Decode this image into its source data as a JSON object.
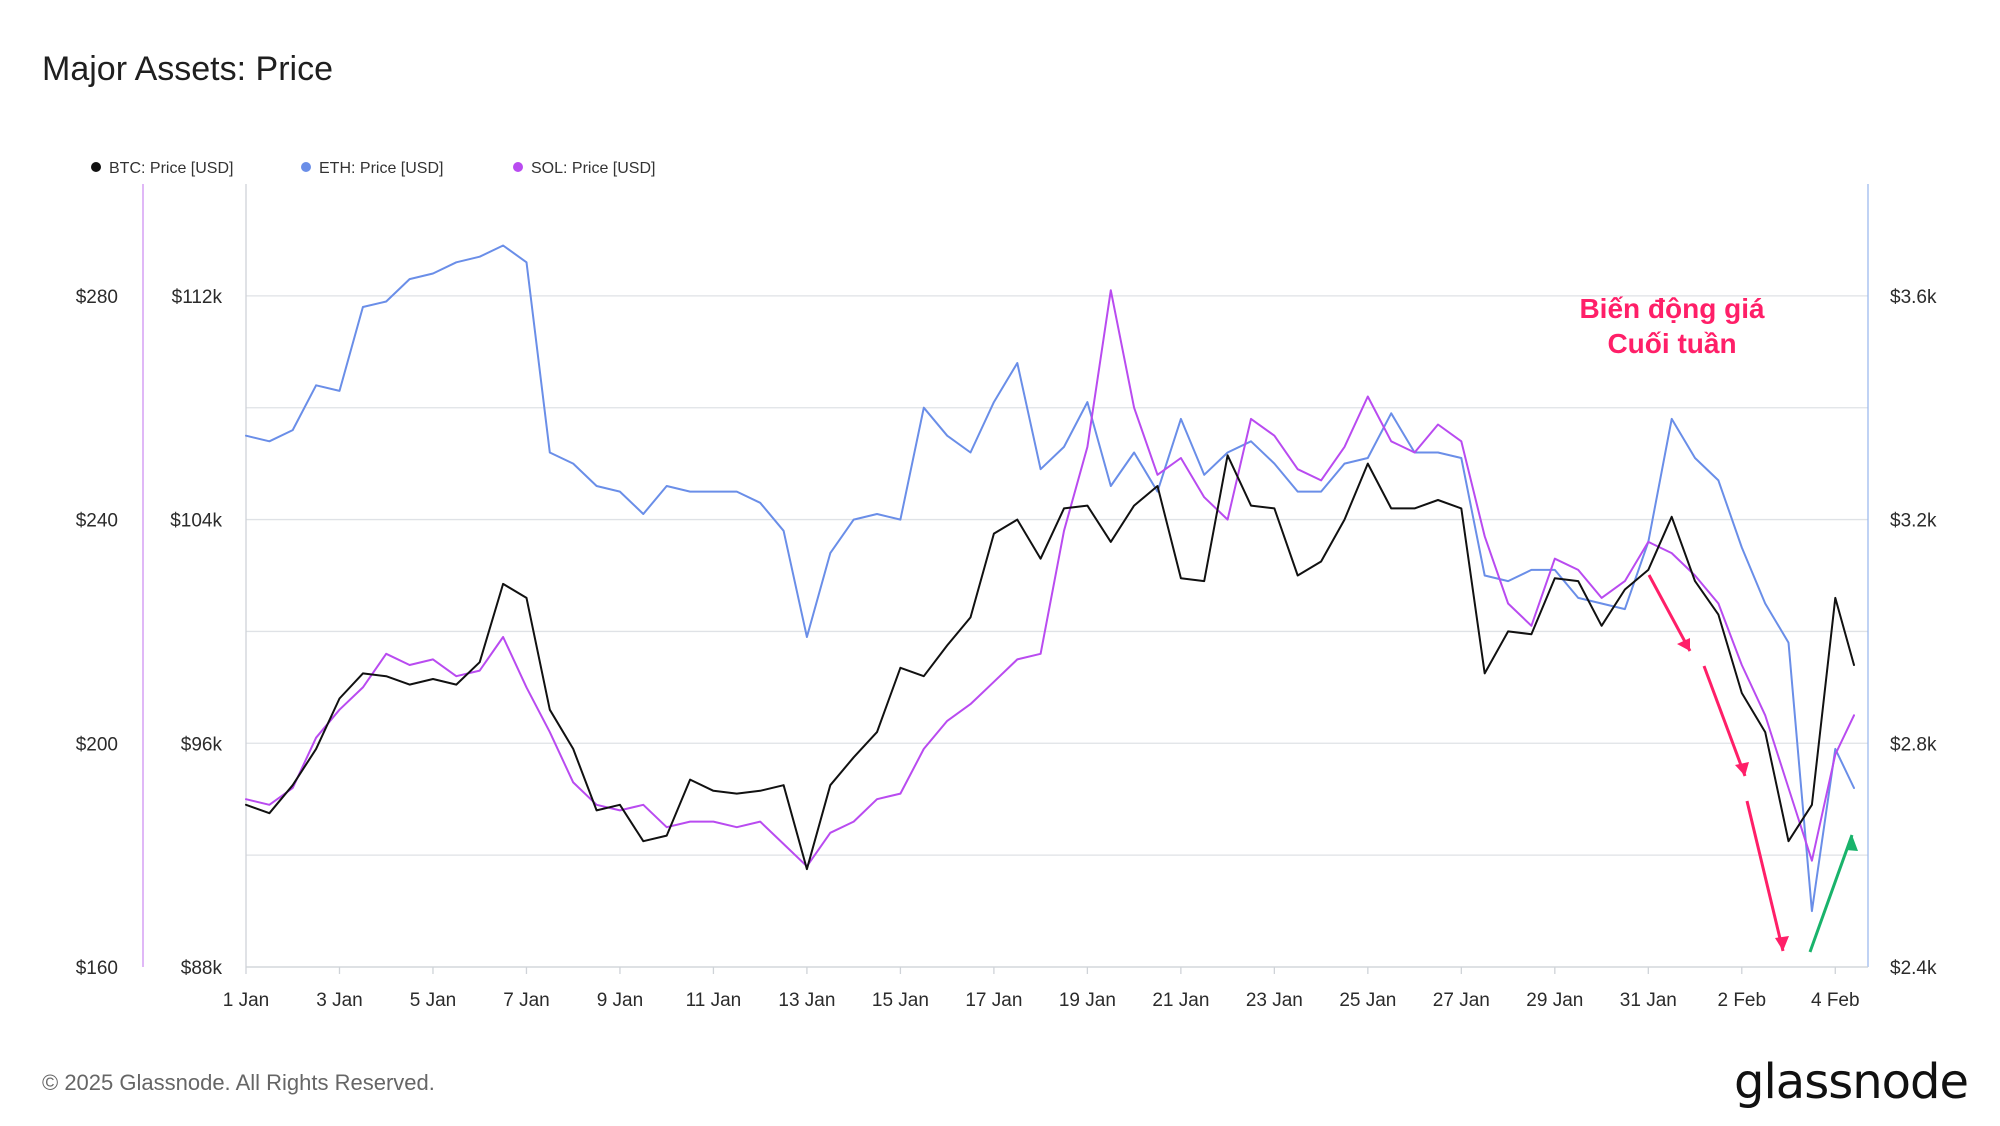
{
  "page": {
    "title": "Major Assets: Price",
    "copyright": "© 2025 Glassnode. All Rights Reserved.",
    "brand": "glassnode"
  },
  "annotation": {
    "line1": "Biến động giá",
    "line2": "Cuối tuần"
  },
  "chart_data": {
    "type": "line",
    "title": "Major Assets: Price",
    "x_ticks": [
      "1 Jan",
      "3 Jan",
      "5 Jan",
      "7 Jan",
      "9 Jan",
      "11 Jan",
      "13 Jan",
      "15 Jan",
      "17 Jan",
      "19 Jan",
      "21 Jan",
      "23 Jan",
      "25 Jan",
      "27 Jan",
      "29 Jan",
      "31 Jan",
      "2 Feb",
      "4 Feb"
    ],
    "x_range_days": [
      0,
      34.7
    ],
    "axes": {
      "sol": {
        "side": "far-left",
        "ticks": [
          "$280",
          "$240",
          "$200",
          "$160"
        ],
        "tick_values": [
          280,
          240,
          200,
          160
        ],
        "ylim": [
          160,
          300
        ]
      },
      "btc": {
        "side": "left",
        "ticks": [
          "$112k",
          "$104k",
          "$96k",
          "$88k"
        ],
        "tick_values": [
          112000,
          104000,
          96000,
          88000
        ],
        "ylim": [
          88000,
          116000
        ]
      },
      "eth": {
        "side": "right",
        "ticks": [
          "$3.6k",
          "$3.2k",
          "$2.8k",
          "$2.4k"
        ],
        "tick_values": [
          3600,
          3200,
          2800,
          2400
        ],
        "ylim": [
          2400,
          3800
        ]
      }
    },
    "grid": true,
    "legend_position": "top-left",
    "series": [
      {
        "name": "BTC: Price [USD]",
        "axis": "btc",
        "color": "#111111",
        "x": [
          0,
          0.5,
          1,
          1.5,
          2,
          2.5,
          3,
          3.5,
          4,
          4.5,
          5,
          5.5,
          6,
          6.5,
          7,
          7.5,
          8,
          8.5,
          9,
          9.5,
          10,
          10.5,
          11,
          11.5,
          12,
          12.5,
          13,
          13.5,
          14,
          14.5,
          15,
          15.5,
          16,
          16.5,
          17,
          17.5,
          18,
          18.5,
          19,
          19.5,
          20,
          20.5,
          21,
          21.5,
          22,
          22.5,
          23,
          23.5,
          24,
          24.5,
          25,
          25.5,
          26,
          26.5,
          27,
          27.5,
          28,
          28.5,
          29,
          29.5,
          30,
          30.5,
          31,
          31.5,
          32,
          32.5,
          33,
          33.5,
          34,
          34.4
        ],
        "y": [
          93800,
          93500,
          94500,
          95800,
          97600,
          98500,
          98400,
          98100,
          98300,
          98100,
          98900,
          101700,
          101200,
          97200,
          95800,
          93600,
          93800,
          92500,
          92700,
          94700,
          94300,
          94200,
          94300,
          94500,
          91500,
          94500,
          95500,
          96400,
          98700,
          98400,
          99500,
          100500,
          103500,
          104000,
          102600,
          104400,
          104500,
          103200,
          104500,
          105200,
          101900,
          101800,
          106300,
          104500,
          104400,
          102000,
          102500,
          104000,
          106000,
          104400,
          104400,
          104700,
          104400,
          98500,
          100000,
          99900,
          101900,
          101800,
          100200,
          101500,
          102200,
          104100,
          101800,
          100600,
          97800,
          96400,
          92500,
          93800,
          101200,
          98800
        ]
      },
      {
        "name": "ETH: Price [USD]",
        "axis": "eth",
        "color": "#6a8ee8",
        "x": [
          0,
          0.5,
          1,
          1.5,
          2,
          2.5,
          3,
          3.5,
          4,
          4.5,
          5,
          5.5,
          6,
          6.5,
          7,
          7.5,
          8,
          8.5,
          9,
          9.5,
          10,
          10.5,
          11,
          11.5,
          12,
          12.5,
          13,
          13.5,
          14,
          14.5,
          15,
          15.5,
          16,
          16.5,
          17,
          17.5,
          18,
          18.5,
          19,
          19.5,
          20,
          20.5,
          21,
          21.5,
          22,
          22.5,
          23,
          23.5,
          24,
          24.5,
          25,
          25.5,
          26,
          26.5,
          27,
          27.5,
          28,
          28.5,
          29,
          29.5,
          30,
          30.5,
          31,
          31.5,
          32,
          32.5,
          33,
          33.5,
          34,
          34.4
        ],
        "y": [
          3350,
          3340,
          3360,
          3440,
          3430,
          3580,
          3590,
          3630,
          3640,
          3660,
          3670,
          3690,
          3660,
          3320,
          3300,
          3260,
          3250,
          3210,
          3260,
          3250,
          3250,
          3250,
          3230,
          3180,
          2990,
          3140,
          3200,
          3210,
          3200,
          3400,
          3350,
          3320,
          3410,
          3480,
          3290,
          3330,
          3410,
          3260,
          3320,
          3250,
          3380,
          3280,
          3320,
          3340,
          3300,
          3250,
          3250,
          3300,
          3310,
          3390,
          3320,
          3320,
          3310,
          3100,
          3090,
          3110,
          3110,
          3060,
          3050,
          3040,
          3160,
          3380,
          3310,
          3270,
          3150,
          3050,
          2980,
          2500,
          2790,
          2720
        ]
      },
      {
        "name": "SOL: Price [USD]",
        "axis": "sol",
        "color": "#b94bf0",
        "x": [
          0,
          0.5,
          1,
          1.5,
          2,
          2.5,
          3,
          3.5,
          4,
          4.5,
          5,
          5.5,
          6,
          6.5,
          7,
          7.5,
          8,
          8.5,
          9,
          9.5,
          10,
          10.5,
          11,
          11.5,
          12,
          12.5,
          13,
          13.5,
          14,
          14.5,
          15,
          15.5,
          16,
          16.5,
          17,
          17.5,
          18,
          18.5,
          19,
          19.5,
          20,
          20.5,
          21,
          21.5,
          22,
          22.5,
          23,
          23.5,
          24,
          24.5,
          25,
          25.5,
          26,
          26.5,
          27,
          27.5,
          28,
          28.5,
          29,
          29.5,
          30,
          30.5,
          31,
          31.5,
          32,
          32.5,
          33,
          33.5,
          34,
          34.4
        ],
        "y": [
          190,
          189,
          192,
          201,
          206,
          210,
          216,
          214,
          215,
          212,
          213,
          219,
          210,
          202,
          193,
          189,
          188,
          189,
          185,
          186,
          186,
          185,
          186,
          182,
          178,
          184,
          186,
          190,
          191,
          199,
          204,
          207,
          211,
          215,
          216,
          238,
          253,
          281,
          260,
          248,
          251,
          244,
          240,
          258,
          255,
          249,
          247,
          253,
          262,
          254,
          252,
          257,
          254,
          237,
          225,
          221,
          233,
          231,
          226,
          229,
          236,
          234,
          230,
          225,
          214,
          205,
          192,
          179,
          198,
          205
        ]
      }
    ]
  }
}
